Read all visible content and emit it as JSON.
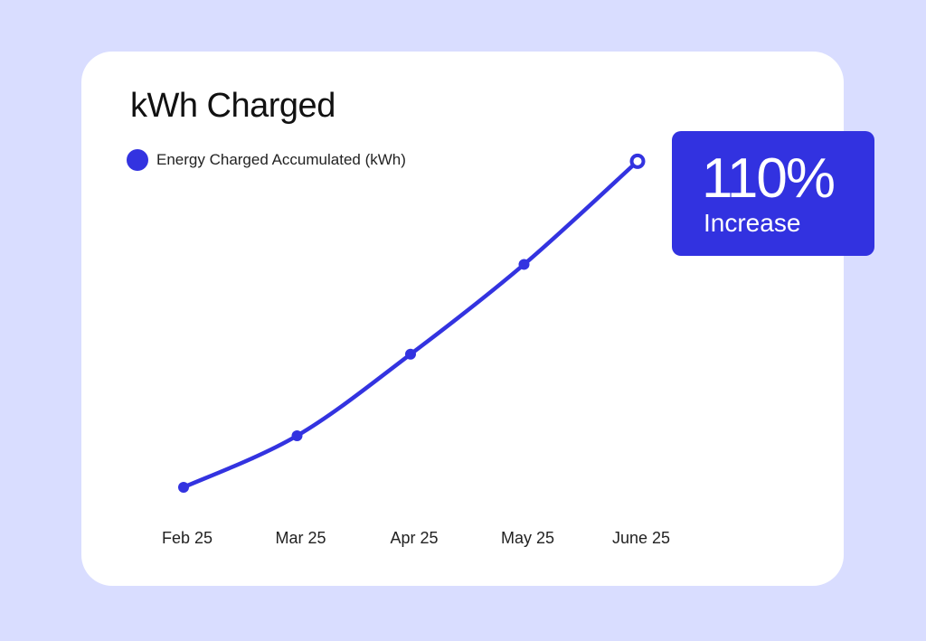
{
  "chart_data": {
    "type": "line",
    "title": "kWh Charged",
    "categories": [
      "Feb 25",
      "Mar 25",
      "Apr 25",
      "May 25",
      "June 25"
    ],
    "series": [
      {
        "name": "Energy Charged Accumulated (kWh)",
        "values": [
          0,
          15.5,
          40,
          67,
          98
        ]
      }
    ],
    "ylim": [
      0,
      100
    ],
    "grid": false,
    "legend_position": "top-left",
    "color": "#3333e0"
  },
  "badge": {
    "value": "110%",
    "label": "Increase",
    "color": "#3232e0"
  }
}
